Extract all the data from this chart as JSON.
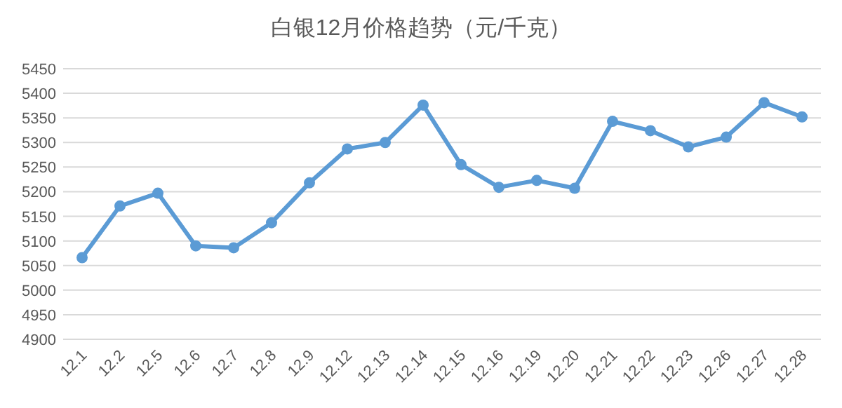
{
  "chart_data": {
    "type": "line",
    "title": "白银12月价格趋势（元/千克）",
    "categories": [
      "12.1",
      "12.2",
      "12.5",
      "12.6",
      "12.7",
      "12.8",
      "12.9",
      "12.12",
      "12.13",
      "12.14",
      "12.15",
      "12.16",
      "12.19",
      "12.20",
      "12.21",
      "12.22",
      "12.23",
      "12.26",
      "12.27",
      "12.28"
    ],
    "series": [
      {
        "color": "#5b9bd5",
        "values": [
          5066,
          5171,
          5197,
          5090,
          5086,
          5137,
          5218,
          5287,
          5300,
          5376,
          5255,
          5209,
          5223,
          5207,
          5343,
          5324,
          5291,
          5311,
          5381,
          5352
        ]
      }
    ],
    "ylim": [
      4900,
      5450
    ],
    "yticks": [
      4900,
      4950,
      5000,
      5050,
      5100,
      5150,
      5200,
      5250,
      5300,
      5350,
      5400,
      5450
    ],
    "grid": "y",
    "marker": "circle",
    "line_style": "solid"
  }
}
